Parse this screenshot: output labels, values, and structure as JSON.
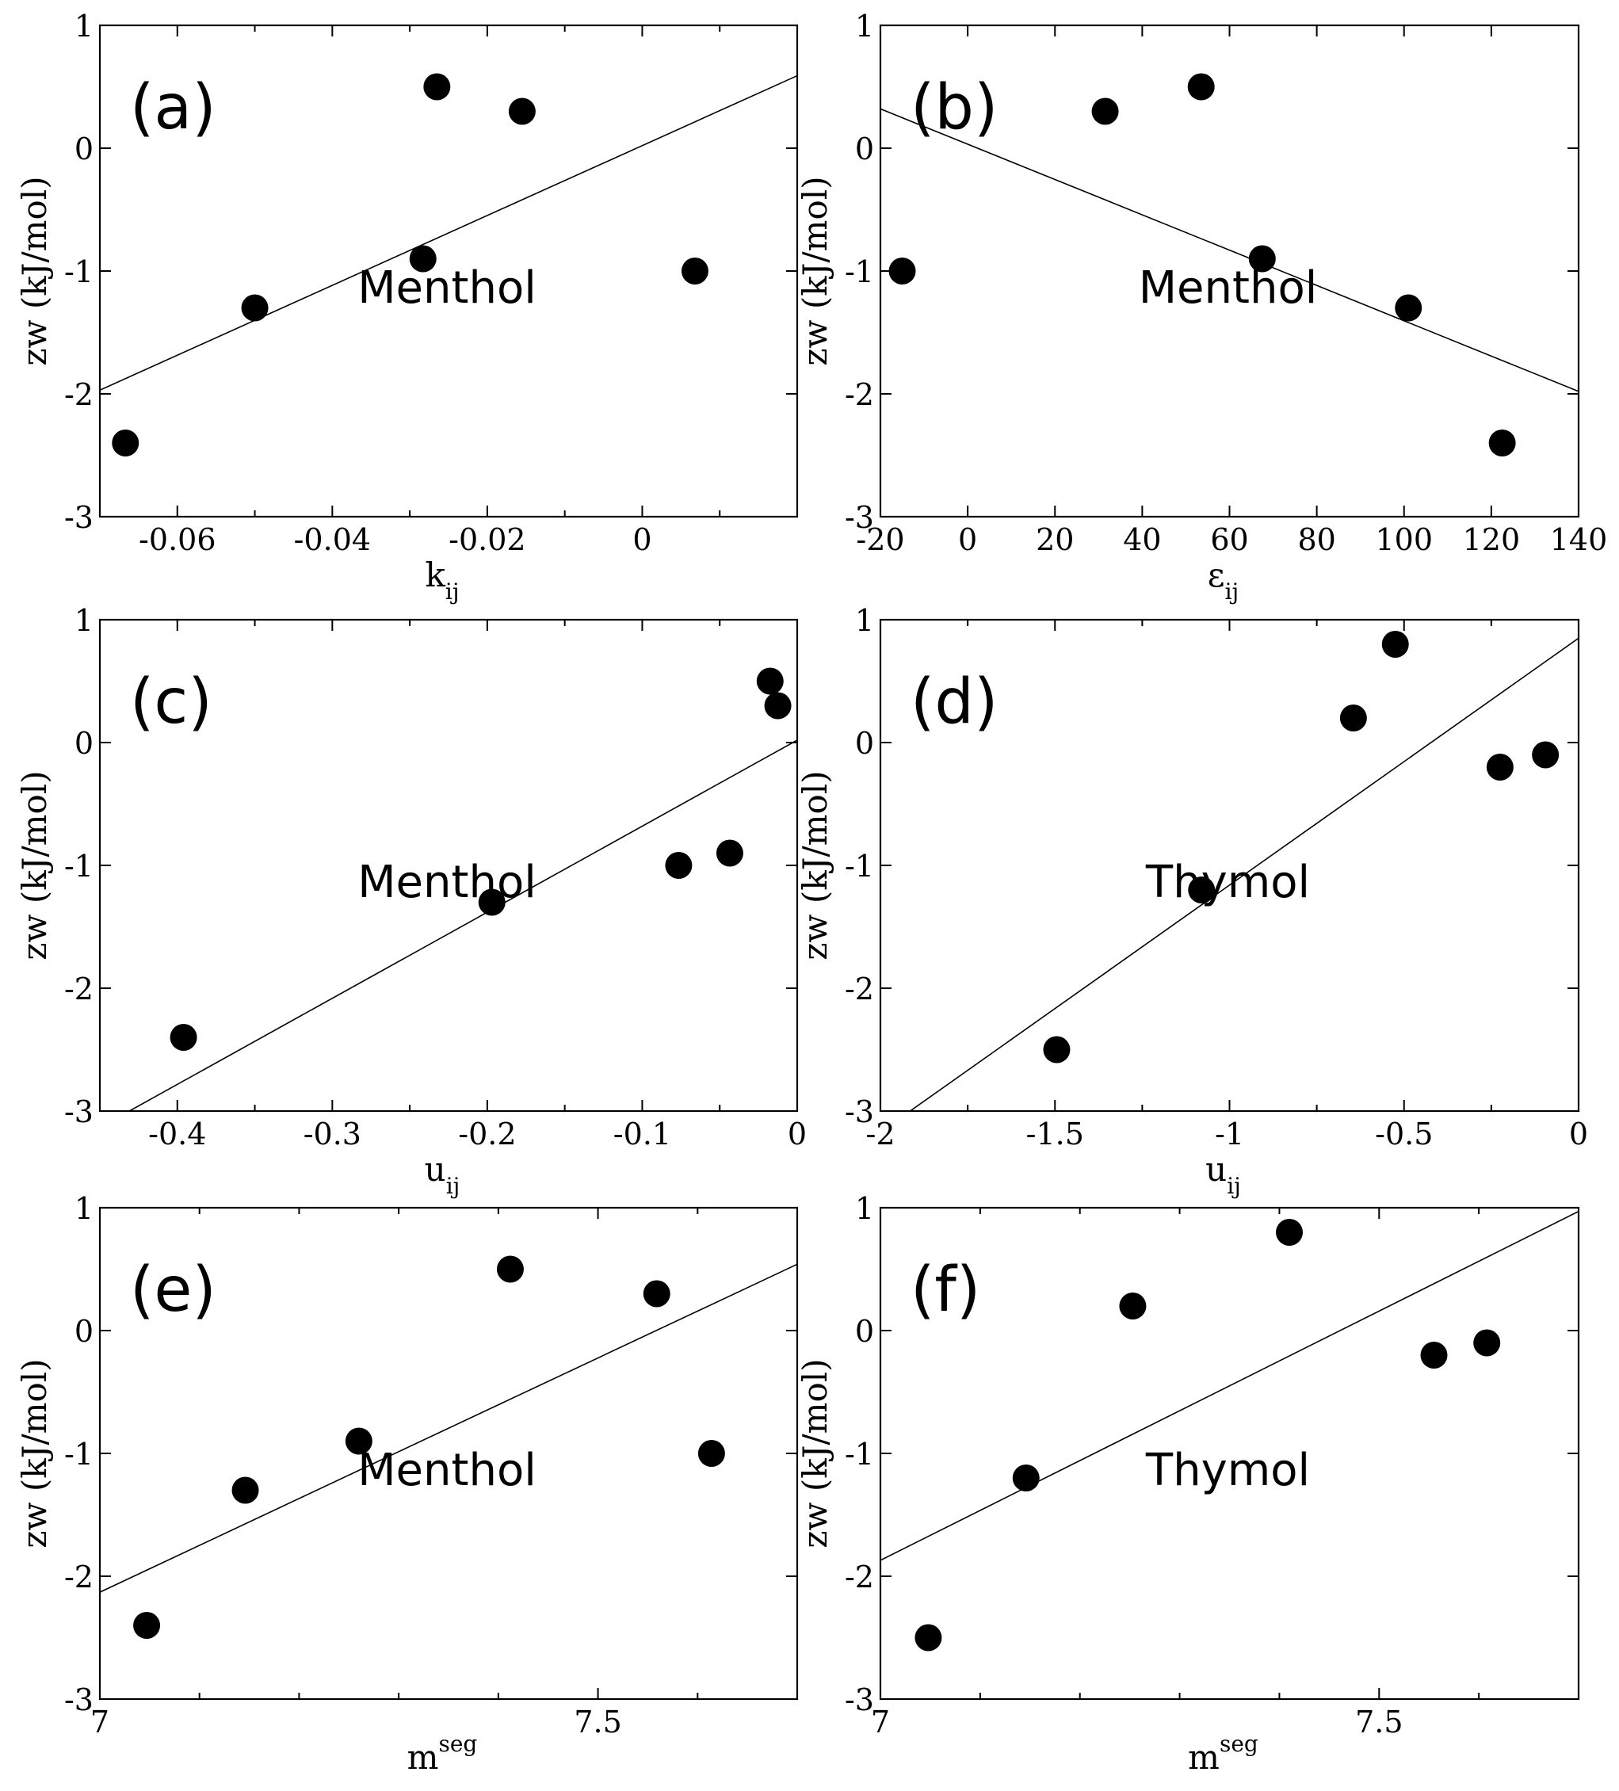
{
  "chart_data": [
    {
      "id": "a",
      "type": "scatter",
      "panel_label": "(a)",
      "annotation": "Menthol",
      "xlabel": {
        "base": "k",
        "sub": "ij",
        "sup": ""
      },
      "ylabel": "zw (kJ/mol)",
      "xlim": [
        -0.07,
        0.02
      ],
      "ylim": [
        -3,
        1
      ],
      "xticks": [
        -0.06,
        -0.04,
        -0.02,
        0
      ],
      "xtick_labels": [
        "-0.06",
        "-0.04",
        "-0.02",
        "0"
      ],
      "xminor": [
        -0.07,
        -0.05,
        -0.03,
        -0.01,
        0.01
      ],
      "yticks": [
        -3,
        -2,
        -1,
        0,
        1
      ],
      "ytick_labels": [
        "-3",
        "-2",
        "-1",
        "0",
        "1"
      ],
      "yminor": [],
      "points": [
        {
          "x": -0.0667,
          "y": -2.4
        },
        {
          "x": -0.05,
          "y": -1.3
        },
        {
          "x": -0.0283,
          "y": -0.9
        },
        {
          "x": -0.0265,
          "y": 0.5
        },
        {
          "x": -0.0155,
          "y": 0.3
        },
        {
          "x": 0.0068,
          "y": -1.0
        }
      ],
      "fit_line": [
        {
          "x": -0.07,
          "y": -1.97
        },
        {
          "x": 0.02,
          "y": 0.59
        }
      ]
    },
    {
      "id": "b",
      "type": "scatter",
      "panel_label": "(b)",
      "annotation": "Menthol",
      "xlabel": {
        "base": "ε",
        "sub": "ij",
        "sup": ""
      },
      "ylabel": "zw (kJ/mol)",
      "xlim": [
        -20,
        140
      ],
      "ylim": [
        -3,
        1
      ],
      "xticks": [
        -20,
        0,
        20,
        40,
        60,
        80,
        100,
        120,
        140
      ],
      "xtick_labels": [
        "-20",
        "0",
        "20",
        "40",
        "60",
        "80",
        "100",
        "120",
        "140"
      ],
      "xminor": [],
      "yticks": [
        -3,
        -2,
        -1,
        0,
        1
      ],
      "ytick_labels": [
        "-3",
        "-2",
        "-1",
        "0",
        "1"
      ],
      "yminor": [],
      "points": [
        {
          "x": -15,
          "y": -1.0
        },
        {
          "x": 31.5,
          "y": 0.3
        },
        {
          "x": 53.5,
          "y": 0.5
        },
        {
          "x": 67.5,
          "y": -0.9
        },
        {
          "x": 101,
          "y": -1.3
        },
        {
          "x": 122.5,
          "y": -2.4
        }
      ],
      "fit_line": [
        {
          "x": -20,
          "y": 0.32
        },
        {
          "x": 140,
          "y": -1.98
        }
      ]
    },
    {
      "id": "c",
      "type": "scatter",
      "panel_label": "(c)",
      "annotation": "Menthol",
      "xlabel": {
        "base": "u",
        "sub": "ij",
        "sup": ""
      },
      "ylabel": "zw (kJ/mol)",
      "xlim": [
        -0.45,
        0
      ],
      "ylim": [
        -3,
        1
      ],
      "xticks": [
        -0.4,
        -0.3,
        -0.2,
        -0.1,
        0
      ],
      "xtick_labels": [
        "-0.4",
        "-0.3",
        "-0.2",
        "-0.1",
        "0"
      ],
      "xminor": [
        -0.35,
        -0.25,
        -0.15,
        -0.05
      ],
      "yticks": [
        -3,
        -2,
        -1,
        0,
        1
      ],
      "ytick_labels": [
        "-3",
        "-2",
        "-1",
        "0",
        "1"
      ],
      "yminor": [],
      "points": [
        {
          "x": -0.396,
          "y": -2.4
        },
        {
          "x": -0.197,
          "y": -1.3
        },
        {
          "x": -0.0765,
          "y": -1.0
        },
        {
          "x": -0.0435,
          "y": -0.9
        },
        {
          "x": -0.0175,
          "y": 0.5
        },
        {
          "x": -0.0125,
          "y": 0.3
        }
      ],
      "fit_line": [
        {
          "x": -0.431,
          "y": -3.0
        },
        {
          "x": 0,
          "y": 0.02
        }
      ]
    },
    {
      "id": "d",
      "type": "scatter",
      "panel_label": "(d)",
      "annotation": "Thymol",
      "xlabel": {
        "base": "u",
        "sub": "ij",
        "sup": ""
      },
      "ylabel": "zw (kJ/mol)",
      "xlim": [
        -2,
        0
      ],
      "ylim": [
        -3,
        1
      ],
      "xticks": [
        -2,
        -1.5,
        -1,
        -0.5,
        0
      ],
      "xtick_labels": [
        "-2",
        "-1.5",
        "-1",
        "-0.5",
        "0"
      ],
      "xminor": [
        -1.75,
        -1.25,
        -0.75,
        -0.25
      ],
      "yticks": [
        -3,
        -2,
        -1,
        0,
        1
      ],
      "ytick_labels": [
        "-3",
        "-2",
        "-1",
        "0",
        "1"
      ],
      "yminor": [],
      "points": [
        {
          "x": -1.495,
          "y": -2.5
        },
        {
          "x": -1.08,
          "y": -1.2
        },
        {
          "x": -0.645,
          "y": 0.2
        },
        {
          "x": -0.525,
          "y": 0.8
        },
        {
          "x": -0.225,
          "y": -0.2
        },
        {
          "x": -0.095,
          "y": -0.1
        }
      ],
      "fit_line": [
        {
          "x": -1.915,
          "y": -3.0
        },
        {
          "x": 0,
          "y": 0.85
        }
      ]
    },
    {
      "id": "e",
      "type": "scatter",
      "panel_label": "(e)",
      "annotation": "Menthol",
      "xlabel": {
        "base": "m",
        "sub": "",
        "sup": "seg"
      },
      "ylabel": "zw (kJ/mol)",
      "xlim": [
        7,
        7.7
      ],
      "ylim": [
        -3,
        1
      ],
      "xticks": [
        7,
        7.5
      ],
      "xtick_labels": [
        "7",
        "7.5"
      ],
      "xminor": [
        7.1,
        7.2,
        7.3,
        7.4,
        7.6
      ],
      "yticks": [
        -3,
        -2,
        -1,
        0,
        1
      ],
      "ytick_labels": [
        "-3",
        "-2",
        "-1",
        "0",
        "1"
      ],
      "yminor": [],
      "points": [
        {
          "x": 7.047,
          "y": -2.4
        },
        {
          "x": 7.146,
          "y": -1.3
        },
        {
          "x": 7.26,
          "y": -0.9
        },
        {
          "x": 7.412,
          "y": 0.5
        },
        {
          "x": 7.559,
          "y": 0.3
        },
        {
          "x": 7.614,
          "y": -1.0
        }
      ],
      "fit_line": [
        {
          "x": 7,
          "y": -2.13
        },
        {
          "x": 7.7,
          "y": 0.54
        }
      ]
    },
    {
      "id": "f",
      "type": "scatter",
      "panel_label": "(f)",
      "annotation": "Thymol",
      "xlabel": {
        "base": "m",
        "sub": "",
        "sup": "seg"
      },
      "ylabel": "zw (kJ/mol)",
      "xlim": [
        7,
        7.7
      ],
      "ylim": [
        -3,
        1
      ],
      "xticks": [
        7,
        7.5
      ],
      "xtick_labels": [
        "7",
        "7.5"
      ],
      "xminor": [
        7.1,
        7.2,
        7.3,
        7.4,
        7.6
      ],
      "yticks": [
        -3,
        -2,
        -1,
        0,
        1
      ],
      "ytick_labels": [
        "-3",
        "-2",
        "-1",
        "0",
        "1"
      ],
      "yminor": [],
      "points": [
        {
          "x": 7.048,
          "y": -2.5
        },
        {
          "x": 7.146,
          "y": -1.2
        },
        {
          "x": 7.253,
          "y": 0.2
        },
        {
          "x": 7.41,
          "y": 0.8
        },
        {
          "x": 7.555,
          "y": -0.2
        },
        {
          "x": 7.608,
          "y": -0.1
        }
      ],
      "fit_line": [
        {
          "x": 7,
          "y": -1.87
        },
        {
          "x": 7.7,
          "y": 0.97
        }
      ]
    }
  ]
}
